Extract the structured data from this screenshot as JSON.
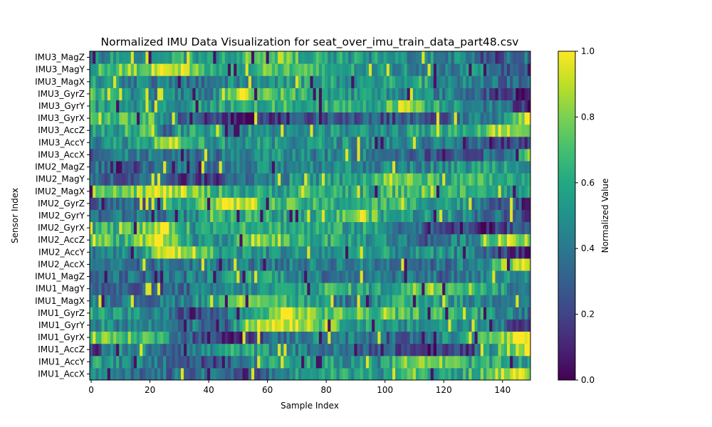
{
  "chart_data": {
    "type": "heatmap",
    "title": "Normalized IMU Data Visualization for seat_over_imu_train_data_part48.csv",
    "xlabel": "Sample Index",
    "ylabel": "Sensor Index",
    "xlim": [
      -0.5,
      149.5
    ],
    "x_ticks": [
      0,
      20,
      40,
      60,
      80,
      100,
      120,
      140
    ],
    "n_samples": 150,
    "rows_bottom_to_top": [
      "IMU1_AccX",
      "IMU1_AccY",
      "IMU1_AccZ",
      "IMU1_GyrX",
      "IMU1_GyrY",
      "IMU1_GyrZ",
      "IMU1_MagX",
      "IMU1_MagY",
      "IMU1_MagZ",
      "IMU2_AccX",
      "IMU2_AccY",
      "IMU2_AccZ",
      "IMU2_GyrX",
      "IMU2_GyrY",
      "IMU2_GyrZ",
      "IMU2_MagX",
      "IMU2_MagY",
      "IMU2_MagZ",
      "IMU3_AccX",
      "IMU3_AccY",
      "IMU3_AccZ",
      "IMU3_GyrX",
      "IMU3_GyrY",
      "IMU3_GyrZ",
      "IMU3_MagX",
      "IMU3_MagY",
      "IMU3_MagZ"
    ],
    "row_profiles": {
      "IMU1_AccX": [
        [
          0,
          0.45
        ],
        [
          25,
          0.35
        ],
        [
          48,
          0.4
        ],
        [
          50,
          0.15
        ],
        [
          60,
          0.35
        ],
        [
          75,
          0.6
        ],
        [
          100,
          0.55
        ],
        [
          108,
          0.85
        ],
        [
          120,
          0.5
        ],
        [
          138,
          0.8
        ],
        [
          149,
          0.95
        ]
      ],
      "IMU1_AccY": [
        [
          0,
          0.55
        ],
        [
          25,
          0.4
        ],
        [
          42,
          0.15
        ],
        [
          50,
          0.35
        ],
        [
          65,
          0.6
        ],
        [
          100,
          0.5
        ],
        [
          110,
          0.9
        ],
        [
          130,
          0.6
        ],
        [
          149,
          0.55
        ]
      ],
      "IMU1_AccZ": [
        [
          0,
          0.2
        ],
        [
          10,
          0.5
        ],
        [
          30,
          0.35
        ],
        [
          50,
          0.6
        ],
        [
          75,
          0.4
        ],
        [
          100,
          0.3
        ],
        [
          115,
          0.1
        ],
        [
          130,
          0.25
        ],
        [
          140,
          0.75
        ],
        [
          149,
          0.95
        ]
      ],
      "IMU1_GyrX": [
        [
          0,
          0.75
        ],
        [
          20,
          0.7
        ],
        [
          35,
          0.3
        ],
        [
          45,
          0.1
        ],
        [
          60,
          0.3
        ],
        [
          75,
          0.5
        ],
        [
          85,
          0.45
        ],
        [
          100,
          0.3
        ],
        [
          125,
          0.5
        ],
        [
          140,
          0.8
        ],
        [
          149,
          1.0
        ]
      ],
      "IMU1_GyrY": [
        [
          0,
          0.5
        ],
        [
          15,
          0.45
        ],
        [
          35,
          0.4
        ],
        [
          45,
          0.25
        ],
        [
          55,
          0.9
        ],
        [
          68,
          1.0
        ],
        [
          80,
          0.75
        ],
        [
          100,
          0.45
        ],
        [
          125,
          0.55
        ],
        [
          140,
          0.4
        ],
        [
          149,
          0.1
        ]
      ],
      "IMU1_GyrZ": [
        [
          0,
          0.6
        ],
        [
          25,
          0.4
        ],
        [
          35,
          0.15
        ],
        [
          45,
          0.35
        ],
        [
          55,
          0.5
        ],
        [
          66,
          1.0
        ],
        [
          75,
          0.75
        ],
        [
          100,
          0.7
        ],
        [
          125,
          0.65
        ],
        [
          140,
          0.5
        ],
        [
          149,
          0.4
        ]
      ],
      "IMU1_MagX": [
        [
          0,
          0.5
        ],
        [
          20,
          0.35
        ],
        [
          40,
          0.55
        ],
        [
          55,
          0.9
        ],
        [
          70,
          0.6
        ],
        [
          90,
          0.35
        ],
        [
          110,
          0.65
        ],
        [
          130,
          0.45
        ],
        [
          149,
          0.5
        ]
      ],
      "IMU1_MagY": [
        [
          0,
          0.3
        ],
        [
          20,
          0.25
        ],
        [
          40,
          0.4
        ],
        [
          60,
          0.5
        ],
        [
          80,
          0.65
        ],
        [
          100,
          0.55
        ],
        [
          115,
          0.85
        ],
        [
          130,
          0.75
        ],
        [
          149,
          0.3
        ]
      ],
      "IMU1_MagZ": [
        [
          0,
          0.4
        ],
        [
          20,
          0.35
        ],
        [
          40,
          0.45
        ],
        [
          60,
          0.6
        ],
        [
          80,
          0.4
        ],
        [
          100,
          0.45
        ],
        [
          120,
          0.35
        ],
        [
          140,
          0.5
        ],
        [
          149,
          0.45
        ]
      ],
      "IMU2_AccX": [
        [
          0,
          0.3
        ],
        [
          20,
          0.35
        ],
        [
          40,
          0.45
        ],
        [
          60,
          0.4
        ],
        [
          80,
          0.45
        ],
        [
          100,
          0.4
        ],
        [
          120,
          0.35
        ],
        [
          135,
          0.55
        ],
        [
          145,
          0.95
        ],
        [
          149,
          1.0
        ]
      ],
      "IMU2_AccY": [
        [
          0,
          0.4
        ],
        [
          18,
          0.5
        ],
        [
          25,
          0.95
        ],
        [
          35,
          0.85
        ],
        [
          45,
          0.55
        ],
        [
          60,
          0.5
        ],
        [
          100,
          0.5
        ],
        [
          130,
          0.45
        ],
        [
          140,
          0.2
        ],
        [
          149,
          0.1
        ]
      ],
      "IMU2_AccZ": [
        [
          0,
          0.85
        ],
        [
          10,
          0.65
        ],
        [
          22,
          0.9
        ],
        [
          35,
          0.5
        ],
        [
          45,
          0.5
        ],
        [
          55,
          0.85
        ],
        [
          65,
          0.7
        ],
        [
          80,
          0.6
        ],
        [
          100,
          0.5
        ],
        [
          115,
          0.3
        ],
        [
          130,
          0.5
        ],
        [
          140,
          0.85
        ],
        [
          149,
          0.8
        ]
      ],
      "IMU2_GyrX": [
        [
          0,
          0.6
        ],
        [
          15,
          0.7
        ],
        [
          25,
          0.9
        ],
        [
          35,
          0.55
        ],
        [
          50,
          0.7
        ],
        [
          70,
          0.6
        ],
        [
          95,
          0.55
        ],
        [
          115,
          0.3
        ],
        [
          125,
          0.2
        ],
        [
          135,
          0.1
        ],
        [
          149,
          0.35
        ]
      ],
      "IMU2_GyrY": [
        [
          0,
          0.35
        ],
        [
          20,
          0.4
        ],
        [
          40,
          0.5
        ],
        [
          41,
          0.9
        ],
        [
          42,
          0.6
        ],
        [
          60,
          0.6
        ],
        [
          80,
          0.55
        ],
        [
          92,
          0.9
        ],
        [
          100,
          0.55
        ],
        [
          125,
          0.5
        ],
        [
          140,
          0.3
        ],
        [
          149,
          0.25
        ]
      ],
      "IMU2_GyrZ": [
        [
          0,
          0.3
        ],
        [
          20,
          0.35
        ],
        [
          30,
          0.6
        ],
        [
          40,
          0.85
        ],
        [
          52,
          0.95
        ],
        [
          60,
          0.7
        ],
        [
          80,
          0.6
        ],
        [
          100,
          0.65
        ],
        [
          125,
          0.55
        ],
        [
          140,
          0.3
        ],
        [
          149,
          0.15
        ]
      ],
      "IMU2_MagX": [
        [
          0,
          0.85
        ],
        [
          15,
          0.8
        ],
        [
          25,
          0.95
        ],
        [
          40,
          0.7
        ],
        [
          55,
          0.55
        ],
        [
          75,
          0.65
        ],
        [
          95,
          0.6
        ],
        [
          110,
          0.75
        ],
        [
          130,
          0.6
        ],
        [
          149,
          0.5
        ]
      ],
      "IMU2_MagY": [
        [
          0,
          0.3
        ],
        [
          20,
          0.35
        ],
        [
          35,
          0.2
        ],
        [
          50,
          0.4
        ],
        [
          70,
          0.5
        ],
        [
          90,
          0.55
        ],
        [
          105,
          0.85
        ],
        [
          120,
          0.6
        ],
        [
          135,
          0.65
        ],
        [
          149,
          0.5
        ]
      ],
      "IMU2_MagZ": [
        [
          0,
          0.45
        ],
        [
          10,
          0.15
        ],
        [
          20,
          0.4
        ],
        [
          40,
          0.3
        ],
        [
          60,
          0.45
        ],
        [
          80,
          0.5
        ],
        [
          100,
          0.45
        ],
        [
          125,
          0.5
        ],
        [
          135,
          0.6
        ],
        [
          149,
          0.55
        ]
      ],
      "IMU3_AccX": [
        [
          0,
          0.3
        ],
        [
          15,
          0.45
        ],
        [
          30,
          0.3
        ],
        [
          45,
          0.4
        ],
        [
          60,
          0.5
        ],
        [
          80,
          0.45
        ],
        [
          100,
          0.45
        ],
        [
          120,
          0.2
        ],
        [
          130,
          0.3
        ],
        [
          140,
          0.35
        ],
        [
          149,
          0.9
        ]
      ],
      "IMU3_AccY": [
        [
          0,
          0.45
        ],
        [
          20,
          0.6
        ],
        [
          25,
          1.0
        ],
        [
          30,
          0.85
        ],
        [
          40,
          0.55
        ],
        [
          60,
          0.5
        ],
        [
          100,
          0.5
        ],
        [
          130,
          0.35
        ],
        [
          140,
          0.1
        ],
        [
          149,
          0.25
        ]
      ],
      "IMU3_AccZ": [
        [
          0,
          0.5
        ],
        [
          10,
          0.6
        ],
        [
          22,
          0.8
        ],
        [
          25,
          0.1
        ],
        [
          30,
          0.55
        ],
        [
          60,
          0.5
        ],
        [
          100,
          0.5
        ],
        [
          125,
          0.6
        ],
        [
          140,
          0.9
        ],
        [
          149,
          0.85
        ]
      ],
      "IMU3_GyrX": [
        [
          0,
          0.75
        ],
        [
          20,
          0.7
        ],
        [
          30,
          0.35
        ],
        [
          45,
          0.15
        ],
        [
          50,
          0.05
        ],
        [
          60,
          0.15
        ],
        [
          80,
          0.3
        ],
        [
          100,
          0.25
        ],
        [
          120,
          0.3
        ],
        [
          140,
          0.5
        ],
        [
          149,
          0.95
        ]
      ],
      "IMU3_GyrY": [
        [
          0,
          0.55
        ],
        [
          20,
          0.5
        ],
        [
          40,
          0.55
        ],
        [
          60,
          0.65
        ],
        [
          80,
          0.6
        ],
        [
          100,
          0.65
        ],
        [
          107,
          0.95
        ],
        [
          115,
          0.65
        ],
        [
          130,
          0.5
        ],
        [
          140,
          0.35
        ],
        [
          149,
          0.15
        ]
      ],
      "IMU3_GyrZ": [
        [
          0,
          0.75
        ],
        [
          10,
          0.5
        ],
        [
          25,
          0.45
        ],
        [
          40,
          0.35
        ],
        [
          50,
          0.9
        ],
        [
          60,
          0.75
        ],
        [
          80,
          0.55
        ],
        [
          100,
          0.5
        ],
        [
          120,
          0.45
        ],
        [
          135,
          0.3
        ],
        [
          149,
          0.1
        ]
      ],
      "IMU3_MagX": [
        [
          0,
          0.55
        ],
        [
          15,
          0.45
        ],
        [
          30,
          0.35
        ],
        [
          50,
          0.45
        ],
        [
          70,
          0.6
        ],
        [
          90,
          0.5
        ],
        [
          110,
          0.6
        ],
        [
          130,
          0.4
        ],
        [
          149,
          0.3
        ]
      ],
      "IMU3_MagY": [
        [
          0,
          0.65
        ],
        [
          15,
          0.8
        ],
        [
          30,
          0.95
        ],
        [
          45,
          0.5
        ],
        [
          60,
          0.75
        ],
        [
          80,
          0.6
        ],
        [
          100,
          0.5
        ],
        [
          120,
          0.45
        ],
        [
          135,
          0.5
        ],
        [
          145,
          0.2
        ],
        [
          149,
          0.3
        ]
      ],
      "IMU3_MagZ": [
        [
          0,
          0.5
        ],
        [
          20,
          0.55
        ],
        [
          45,
          0.6
        ],
        [
          62,
          0.8
        ],
        [
          80,
          0.55
        ],
        [
          100,
          0.5
        ],
        [
          125,
          0.45
        ],
        [
          135,
          0.2
        ],
        [
          149,
          0.4
        ]
      ]
    },
    "colorbar": {
      "label": "Normalized Value",
      "range": [
        0.0,
        1.0
      ],
      "ticks": [
        "0.0",
        "0.2",
        "0.4",
        "0.6",
        "0.8",
        "1.0"
      ],
      "colormap": "viridis"
    },
    "grid": false
  }
}
